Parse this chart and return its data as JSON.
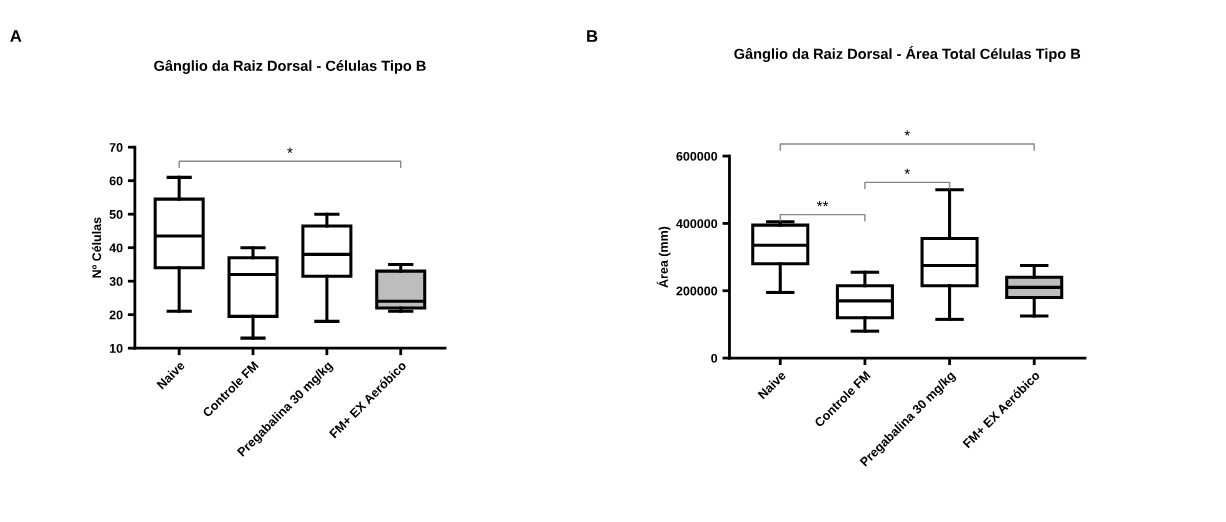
{
  "chart_data": [
    {
      "type": "box",
      "title": "Gânglio da Raiz Dorsal - Células Tipo B",
      "ylabel": "Nº Células",
      "categories": [
        "Naive",
        "Controle FM",
        "Pregabalina 30 mg/kg",
        "FM+ EX Aeróbico"
      ],
      "colors": [
        "#ffffff",
        "#ffffff",
        "#ffffff",
        "#bdbdbd"
      ],
      "boxes": [
        {
          "low": 21,
          "q1": 34,
          "median": 43.5,
          "q3": 54.5,
          "high": 61
        },
        {
          "low": 13,
          "q1": 19.5,
          "median": 32,
          "q3": 37,
          "high": 40
        },
        {
          "low": 18,
          "q1": 31.5,
          "median": 38,
          "q3": 46.5,
          "high": 50
        },
        {
          "low": 21,
          "q1": 22,
          "median": 24,
          "q3": 33,
          "high": 35
        }
      ],
      "ylim": [
        10,
        70
      ],
      "yticks": [
        10,
        20,
        30,
        40,
        50,
        60,
        70
      ],
      "grid": false,
      "legend": false,
      "annotations": [
        "A",
        "*"
      ]
    },
    {
      "type": "box",
      "title": "Gânglio da Raiz Dorsal - Área Total Células Tipo B",
      "ylabel": "Área (mm)",
      "categories": [
        "Naive",
        "Controle FM",
        "Pregabalina 30 mg/kg",
        "FM+ EX Aeróbico"
      ],
      "colors": [
        "#ffffff",
        "#ffffff",
        "#ffffff",
        "#bdbdbd"
      ],
      "boxes": [
        {
          "low": 195000,
          "q1": 280000,
          "median": 335000,
          "q3": 395000,
          "high": 405000
        },
        {
          "low": 80000,
          "q1": 120000,
          "median": 170000,
          "q3": 215000,
          "high": 255000
        },
        {
          "low": 115000,
          "q1": 215000,
          "median": 275000,
          "q3": 355000,
          "high": 500000
        },
        {
          "low": 125000,
          "q1": 180000,
          "median": 210000,
          "q3": 240000,
          "high": 275000
        }
      ],
      "ylim": [
        0,
        600000
      ],
      "yticks": [
        0,
        200000,
        400000,
        600000
      ],
      "grid": false,
      "legend": false,
      "annotations": [
        "B",
        "**",
        "*",
        "*"
      ]
    }
  ]
}
